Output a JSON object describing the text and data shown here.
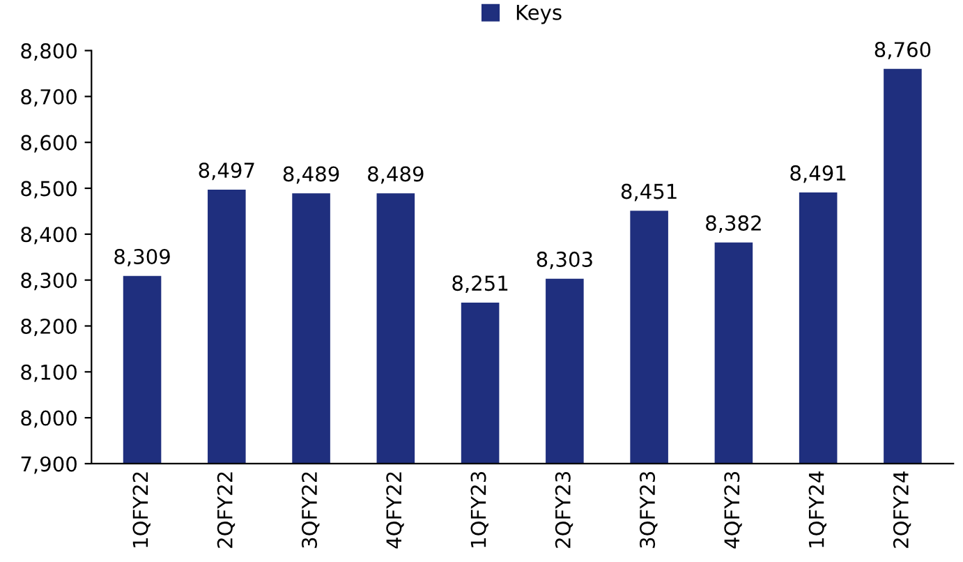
{
  "chart_data": {
    "type": "bar",
    "categories": [
      "1QFY22",
      "2QFY22",
      "3QFY22",
      "4QFY22",
      "1QFY23",
      "2QFY23",
      "3QFY23",
      "4QFY23",
      "1QFY24",
      "2QFY24"
    ],
    "series": [
      {
        "name": "Keys",
        "color": "#1f2f7e",
        "values": [
          8309,
          8497,
          8489,
          8489,
          8251,
          8303,
          8451,
          8382,
          8491,
          8760
        ]
      }
    ],
    "ylim": [
      7900,
      8800
    ],
    "yticks": [
      {
        "value": 7900,
        "label": "7,900"
      },
      {
        "value": 8000,
        "label": "8,000"
      },
      {
        "value": 8100,
        "label": "8,100"
      },
      {
        "value": 8200,
        "label": "8,200"
      },
      {
        "value": 8300,
        "label": "8,300"
      },
      {
        "value": 8400,
        "label": "8,400"
      },
      {
        "value": 8500,
        "label": "8,500"
      },
      {
        "value": 8600,
        "label": "8,600"
      },
      {
        "value": 8700,
        "label": "8,700"
      },
      {
        "value": 8800,
        "label": "8,800"
      }
    ],
    "value_labels": [
      "8,309",
      "8,497",
      "8,489",
      "8,489",
      "8,251",
      "8,303",
      "8,451",
      "8,382",
      "8,491",
      "8,760"
    ],
    "legend": "top",
    "grid": false
  }
}
